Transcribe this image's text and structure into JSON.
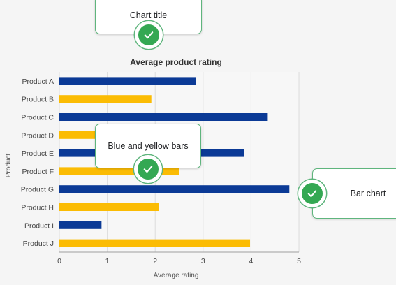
{
  "callouts": {
    "title_callout": "Chart title",
    "bars_callout": "Blue and yellow bars",
    "type_callout": "Bar chart"
  },
  "colors": {
    "blue": "#0b3a96",
    "yellow": "#fbbc04",
    "badge_green": "#34a853",
    "callout_border": "#5fb57d"
  },
  "icons": [
    "check-icon"
  ],
  "chart_data": {
    "type": "bar",
    "orientation": "horizontal",
    "title": "Average product rating",
    "xlabel": "Average rating",
    "ylabel": "Product",
    "xlim": [
      0,
      5
    ],
    "xticks": [
      "0",
      "1",
      "2",
      "3",
      "4",
      "5"
    ],
    "grid": true,
    "categories": [
      "Product A",
      "Product B",
      "Product C",
      "Product D",
      "Product E",
      "Product F",
      "Product G",
      "Product H",
      "Product I",
      "Product J"
    ],
    "values": [
      2.85,
      1.92,
      4.35,
      1.3,
      3.85,
      2.5,
      4.8,
      2.08,
      0.88,
      3.98
    ],
    "bar_colors": [
      "#0b3a96",
      "#fbbc04",
      "#0b3a96",
      "#fbbc04",
      "#0b3a96",
      "#fbbc04",
      "#0b3a96",
      "#fbbc04",
      "#0b3a96",
      "#fbbc04"
    ]
  }
}
